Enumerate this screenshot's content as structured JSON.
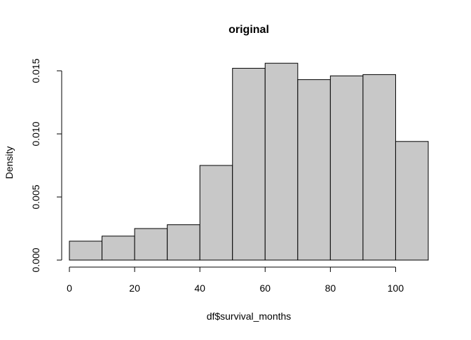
{
  "chart_data": {
    "type": "bar",
    "subtype": "histogram",
    "title": "original",
    "xlabel": "df$survival_months",
    "ylabel": "Density",
    "bins": [
      {
        "x0": 0,
        "x1": 10,
        "value": 0.0015
      },
      {
        "x0": 10,
        "x1": 20,
        "value": 0.0019
      },
      {
        "x0": 20,
        "x1": 30,
        "value": 0.0025
      },
      {
        "x0": 30,
        "x1": 40,
        "value": 0.0028
      },
      {
        "x0": 40,
        "x1": 50,
        "value": 0.0075
      },
      {
        "x0": 50,
        "x1": 60,
        "value": 0.0152
      },
      {
        "x0": 60,
        "x1": 70,
        "value": 0.0156
      },
      {
        "x0": 70,
        "x1": 80,
        "value": 0.0143
      },
      {
        "x0": 80,
        "x1": 90,
        "value": 0.0146
      },
      {
        "x0": 90,
        "x1": 100,
        "value": 0.0147
      },
      {
        "x0": 100,
        "x1": 110,
        "value": 0.0094
      }
    ],
    "xlim": [
      0,
      110
    ],
    "ylim": [
      0,
      0.015
    ],
    "xticks": [
      0,
      20,
      40,
      60,
      80,
      100
    ],
    "xtick_labels": [
      "0",
      "20",
      "40",
      "60",
      "80",
      "100"
    ],
    "yticks": [
      0,
      0.005,
      0.01,
      0.015
    ],
    "ytick_labels": [
      "0.000",
      "0.005",
      "0.010",
      "0.015"
    ],
    "grid": false,
    "legend": "none",
    "colors": {
      "bar_fill": "#c8c8c8",
      "bar_stroke": "#000000",
      "axis": "#000000",
      "background": "#ffffff"
    }
  }
}
